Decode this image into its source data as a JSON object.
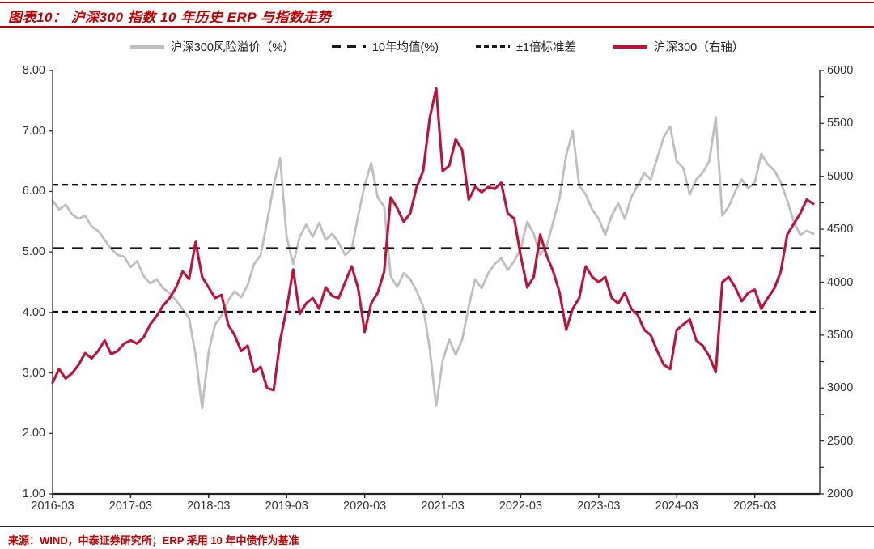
{
  "header": {
    "title": "图表10：  沪深300 指数 10 年历史 ERP 与指数走势"
  },
  "legend": [
    {
      "label": "沪深300风险溢价（%）",
      "swatch": "solid-gray"
    },
    {
      "label": "10年均值(%)",
      "swatch": "dash-long"
    },
    {
      "label": "±1倍标准差",
      "swatch": "dash-short"
    },
    {
      "label": "沪深300（右轴）",
      "swatch": "solid-red"
    }
  ],
  "footer": {
    "source": "来源：WIND，中泰证券研究所；ERP 采用 10 年中债作为基准"
  },
  "colors": {
    "accent": "#c00000",
    "erp_line": "#bfbfbf",
    "index_line": "#be1339",
    "reference": "#111111"
  },
  "chart_data": {
    "type": "line",
    "title": "沪深300指数10年历史ERP与指数走势",
    "grid": "off",
    "legend_position": "top-center",
    "x_domain": [
      2016.167,
      2026.0
    ],
    "x_start": 2016.167,
    "x_step_years": 0.08333,
    "x_tick_positions": [
      2016.167,
      2017.167,
      2018.167,
      2019.167,
      2020.167,
      2021.167,
      2022.167,
      2023.167,
      2024.167,
      2025.167
    ],
    "x_tick_labels": [
      "2016-03",
      "2017-03",
      "2018-03",
      "2019-03",
      "2020-03",
      "2021-03",
      "2022-03",
      "2023-03",
      "2024-03",
      "2025-03"
    ],
    "left_axis": {
      "min": 1.0,
      "max": 8.0,
      "tick_values": [
        8,
        7,
        6,
        5,
        4,
        3,
        2,
        1
      ],
      "tick_labels": [
        "8.00",
        "7.00",
        "6.00",
        "5.00",
        "4.00",
        "3.00",
        "2.00",
        "1.00"
      ]
    },
    "right_axis": {
      "min": 2000,
      "max": 6000,
      "tick_values": [
        6000,
        5500,
        5000,
        4500,
        4000,
        3500,
        3000,
        2500,
        2000
      ],
      "tick_labels": [
        "6000",
        "5500",
        "5000",
        "4500",
        "4000",
        "3500",
        "3000",
        "2500",
        "2000"
      ],
      "minor_tick_step": 250
    },
    "reference_lines": {
      "mean": 5.06,
      "upper_std": 6.11,
      "lower_std": 4.01
    },
    "series": [
      {
        "name": "沪深300风险溢价（%）",
        "axis": "left",
        "color": "#bfbfbf",
        "width": 2.8,
        "values": [
          5.85,
          5.7,
          5.78,
          5.62,
          5.55,
          5.6,
          5.42,
          5.35,
          5.2,
          5.05,
          4.95,
          4.92,
          4.75,
          4.85,
          4.6,
          4.48,
          4.55,
          4.4,
          4.32,
          4.2,
          4.05,
          3.9,
          3.3,
          2.42,
          3.35,
          3.8,
          3.95,
          4.2,
          4.35,
          4.25,
          4.45,
          4.8,
          4.95,
          5.5,
          6.1,
          6.55,
          5.25,
          4.8,
          5.25,
          5.45,
          5.25,
          5.48,
          5.2,
          5.3,
          5.15,
          4.95,
          5.05,
          5.6,
          6.1,
          6.47,
          5.9,
          5.75,
          4.6,
          4.42,
          4.65,
          4.55,
          4.35,
          4.1,
          3.4,
          2.45,
          3.2,
          3.55,
          3.3,
          3.55,
          4.1,
          4.55,
          4.4,
          4.65,
          4.8,
          4.9,
          4.7,
          4.85,
          5.05,
          5.5,
          5.3,
          4.95,
          5.1,
          5.5,
          5.9,
          6.6,
          7.0,
          6.1,
          5.95,
          5.7,
          5.55,
          5.28,
          5.6,
          5.8,
          5.55,
          5.9,
          6.1,
          6.3,
          6.2,
          6.55,
          6.9,
          7.07,
          6.5,
          6.39,
          5.95,
          6.2,
          6.31,
          6.5,
          7.23,
          5.6,
          5.75,
          6.0,
          6.2,
          6.05,
          6.15,
          6.62,
          6.45,
          6.35,
          6.15,
          5.85,
          5.5,
          5.28,
          5.35,
          5.3
        ]
      },
      {
        "name": "沪深300（右轴）",
        "axis": "right",
        "color": "#be1339",
        "width": 3.1,
        "values": [
          3050,
          3180,
          3090,
          3140,
          3220,
          3330,
          3280,
          3350,
          3450,
          3320,
          3350,
          3420,
          3450,
          3420,
          3480,
          3600,
          3680,
          3780,
          3850,
          3950,
          4100,
          4030,
          4380,
          4050,
          3950,
          3850,
          3880,
          3600,
          3500,
          3350,
          3400,
          3150,
          3200,
          3000,
          2980,
          3450,
          3750,
          4120,
          3700,
          3800,
          3850,
          3750,
          3950,
          3870,
          3850,
          4000,
          4150,
          3940,
          3530,
          3800,
          3900,
          4100,
          4800,
          4700,
          4570,
          4650,
          4900,
          5050,
          5550,
          5830,
          5050,
          5100,
          5350,
          5250,
          4780,
          4900,
          4850,
          4900,
          4880,
          4940,
          4650,
          4600,
          4250,
          3950,
          4050,
          4450,
          4250,
          4100,
          3900,
          3550,
          3750,
          3850,
          4150,
          4050,
          4000,
          4050,
          3850,
          3800,
          3900,
          3750,
          3690,
          3550,
          3500,
          3350,
          3220,
          3180,
          3550,
          3600,
          3650,
          3450,
          3400,
          3300,
          3150,
          4000,
          4050,
          3950,
          3820,
          3900,
          3930,
          3750,
          3850,
          3940,
          4100,
          4450,
          4550,
          4650,
          4780,
          4740
        ]
      }
    ]
  }
}
